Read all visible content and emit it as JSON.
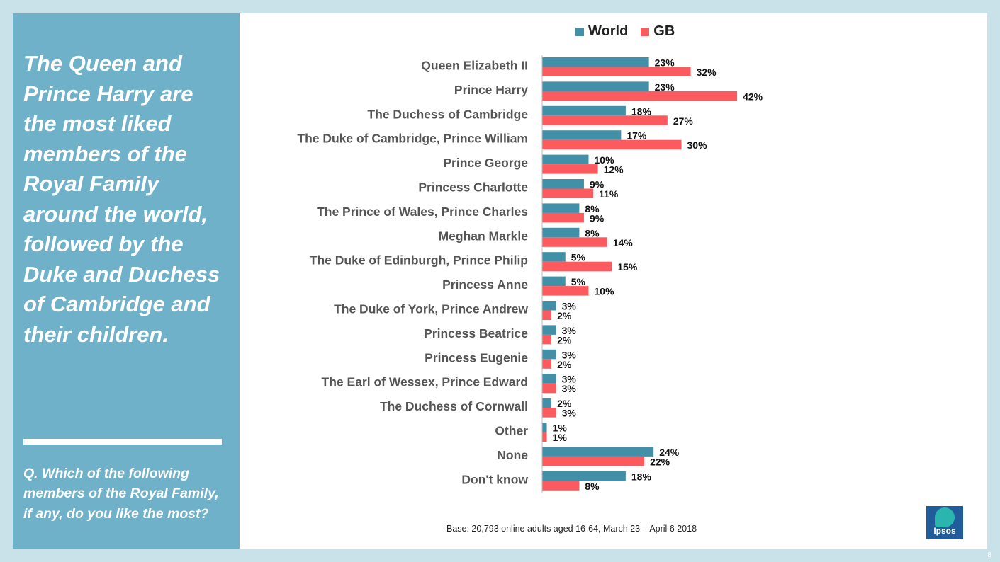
{
  "headline": "The Queen and Prince Harry are the most liked members of the Royal Family around the world, followed by the Duke and Duchess of Cambridge and their children.",
  "question": "Q. Which of the following members  of the Royal Family, if any, do you like the most?",
  "base_note": "Base: 20,793  online adults aged 16-64,   March 23 – April 6 2018",
  "page_number": "8",
  "logo_text": "Ipsos",
  "colors": {
    "world": "#428fa8",
    "gb": "#fb5a5e",
    "left_panel": "#6fb1c9",
    "background": "#c9e1e9"
  },
  "chart_data": {
    "type": "bar",
    "orientation": "horizontal",
    "categories": [
      "Queen Elizabeth II",
      "Prince Harry",
      "The Duchess of Cambridge",
      "The Duke of Cambridge, Prince William",
      "Prince George",
      "Princess Charlotte",
      "The Prince of Wales, Prince Charles",
      "Meghan Markle",
      "The Duke of Edinburgh, Prince Philip",
      "Princess Anne",
      "The Duke of York, Prince Andrew",
      "Princess Beatrice",
      "Princess Eugenie",
      "The Earl of Wessex, Prince Edward",
      "The Duchess of Cornwall",
      "Other",
      "None",
      "Don't know"
    ],
    "series": [
      {
        "name": "World",
        "color": "#428fa8",
        "values": [
          23,
          23,
          18,
          17,
          10,
          9,
          8,
          8,
          5,
          5,
          3,
          3,
          3,
          3,
          2,
          1,
          24,
          18
        ]
      },
      {
        "name": "GB",
        "color": "#fb5a5e",
        "values": [
          32,
          42,
          27,
          30,
          12,
          11,
          9,
          14,
          15,
          10,
          2,
          2,
          2,
          3,
          3,
          1,
          22,
          8
        ]
      }
    ],
    "value_suffix": "%",
    "legend_position": "top",
    "xlim": [
      0,
      45
    ],
    "grid": false
  }
}
